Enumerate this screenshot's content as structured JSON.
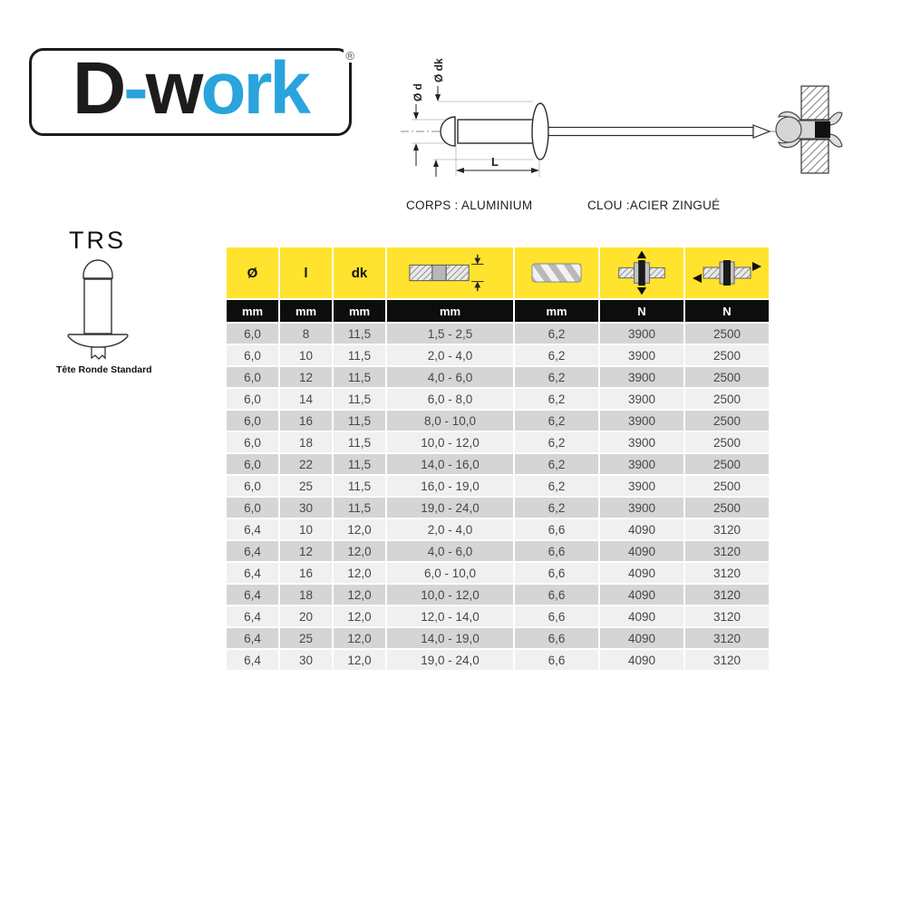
{
  "logo": {
    "parts": {
      "p1": "D",
      "p2": "-",
      "p3": "w",
      "p4": "ork"
    },
    "registered_mark": "®"
  },
  "diagram": {
    "labels": {
      "body_diameter": "Ø d",
      "head_diameter": "Ø dk",
      "length": "L"
    },
    "materials": {
      "body": "CORPS : ALUMINIUM",
      "nail": "CLOU :ACIER ZINGUÉ"
    }
  },
  "product": {
    "code": "TRS",
    "caption": "Tête Ronde Standard"
  },
  "table": {
    "columns": [
      {
        "label": "Ø",
        "unit": "mm",
        "icon": null
      },
      {
        "label": "l",
        "unit": "mm",
        "icon": null
      },
      {
        "label": "dk",
        "unit": "mm",
        "icon": null
      },
      {
        "label": "",
        "unit": "mm",
        "icon": "grip-range-icon"
      },
      {
        "label": "",
        "unit": "mm",
        "icon": "drill-hole-icon"
      },
      {
        "label": "",
        "unit": "N",
        "icon": "tensile-strength-icon"
      },
      {
        "label": "",
        "unit": "N",
        "icon": "shear-strength-icon"
      }
    ],
    "rows": [
      [
        "6,0",
        "8",
        "11,5",
        "1,5 - 2,5",
        "6,2",
        "3900",
        "2500"
      ],
      [
        "6,0",
        "10",
        "11,5",
        "2,0 - 4,0",
        "6,2",
        "3900",
        "2500"
      ],
      [
        "6,0",
        "12",
        "11,5",
        "4,0 - 6,0",
        "6,2",
        "3900",
        "2500"
      ],
      [
        "6,0",
        "14",
        "11,5",
        "6,0 - 8,0",
        "6,2",
        "3900",
        "2500"
      ],
      [
        "6,0",
        "16",
        "11,5",
        "8,0 - 10,0",
        "6,2",
        "3900",
        "2500"
      ],
      [
        "6,0",
        "18",
        "11,5",
        "10,0 - 12,0",
        "6,2",
        "3900",
        "2500"
      ],
      [
        "6,0",
        "22",
        "11,5",
        "14,0 - 16,0",
        "6,2",
        "3900",
        "2500"
      ],
      [
        "6,0",
        "25",
        "11,5",
        "16,0 - 19,0",
        "6,2",
        "3900",
        "2500"
      ],
      [
        "6,0",
        "30",
        "11,5",
        "19,0 - 24,0",
        "6,2",
        "3900",
        "2500"
      ],
      [
        "6,4",
        "10",
        "12,0",
        "2,0 - 4,0",
        "6,6",
        "4090",
        "3120"
      ],
      [
        "6,4",
        "12",
        "12,0",
        "4,0 - 6,0",
        "6,6",
        "4090",
        "3120"
      ],
      [
        "6,4",
        "16",
        "12,0",
        "6,0 - 10,0",
        "6,6",
        "4090",
        "3120"
      ],
      [
        "6,4",
        "18",
        "12,0",
        "10,0 - 12,0",
        "6,6",
        "4090",
        "3120"
      ],
      [
        "6,4",
        "20",
        "12,0",
        "12,0 - 14,0",
        "6,6",
        "4090",
        "3120"
      ],
      [
        "6,4",
        "25",
        "12,0",
        "14,0 - 19,0",
        "6,6",
        "4090",
        "3120"
      ],
      [
        "6,4",
        "30",
        "12,0",
        "19,0 - 24,0",
        "6,6",
        "4090",
        "3120"
      ]
    ]
  },
  "colors": {
    "accent_yellow": "#FFE32E",
    "logo_blue": "#29A4DC",
    "header_black": "#0D0D0D",
    "row_gray": "#D5D5D5",
    "row_light": "#F0F0F0"
  }
}
